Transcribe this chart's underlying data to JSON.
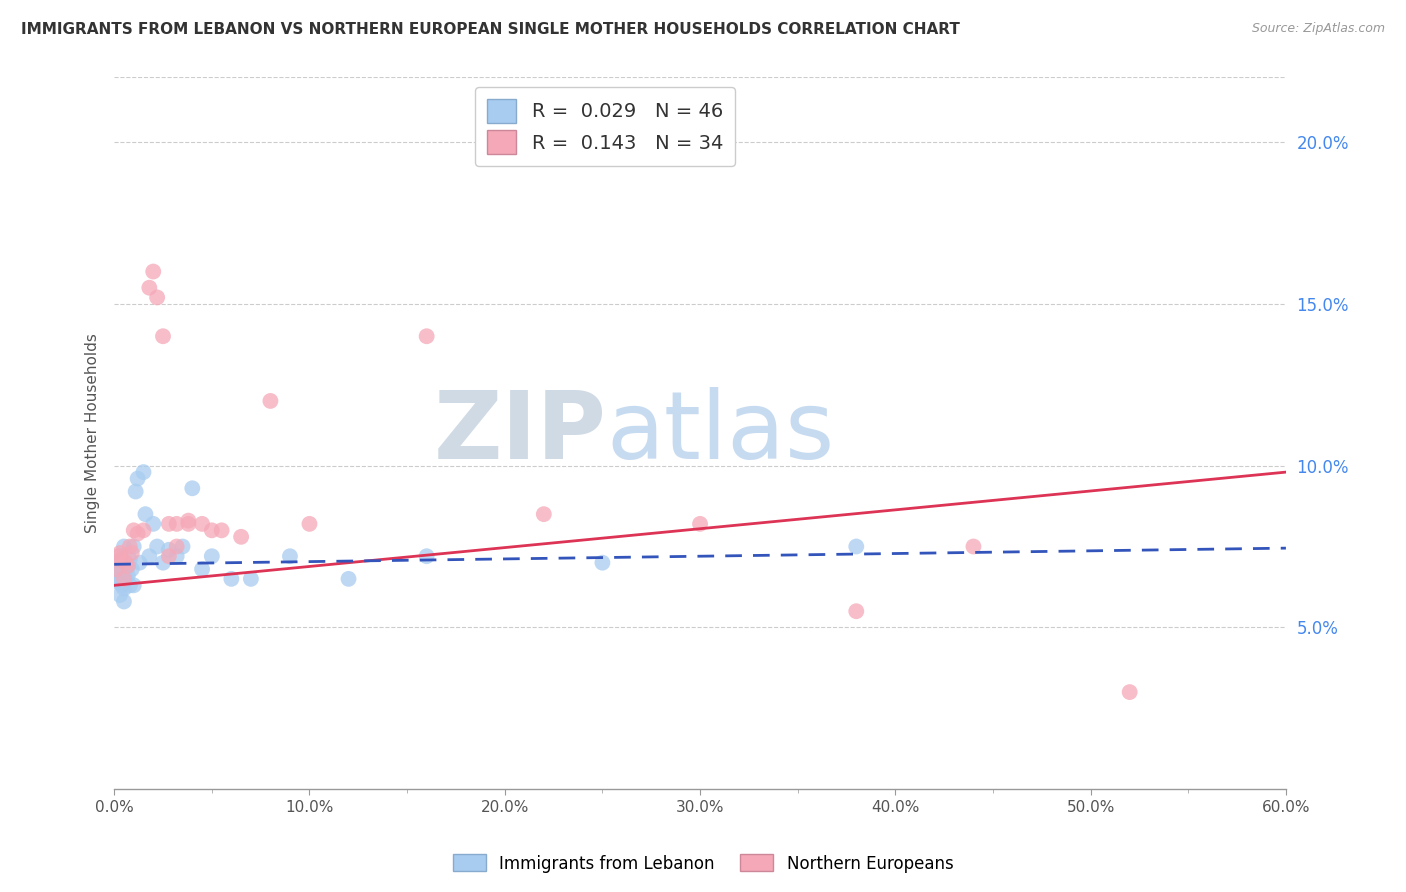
{
  "title": "IMMIGRANTS FROM LEBANON VS NORTHERN EUROPEAN SINGLE MOTHER HOUSEHOLDS CORRELATION CHART",
  "source": "Source: ZipAtlas.com",
  "ylabel": "Single Mother Households",
  "legend_label1": "Immigrants from Lebanon",
  "legend_label2": "Northern Europeans",
  "R1": 0.029,
  "N1": 46,
  "R2": 0.143,
  "N2": 34,
  "xlim": [
    0.0,
    0.6
  ],
  "ylim": [
    0.0,
    0.22
  ],
  "xticks": [
    0.0,
    0.1,
    0.2,
    0.3,
    0.4,
    0.5,
    0.6
  ],
  "yticks": [
    0.05,
    0.1,
    0.15,
    0.2
  ],
  "color_blue": "#a8ccf0",
  "color_pink": "#f5a8b8",
  "line_blue": "#3355bb",
  "line_pink": "#dd3355",
  "watermark_zip": "ZIP",
  "watermark_atlas": "atlas",
  "blue_scatter_x": [
    0.001,
    0.001,
    0.002,
    0.002,
    0.002,
    0.003,
    0.003,
    0.003,
    0.003,
    0.004,
    0.004,
    0.004,
    0.005,
    0.005,
    0.005,
    0.006,
    0.006,
    0.007,
    0.007,
    0.008,
    0.008,
    0.009,
    0.01,
    0.01,
    0.011,
    0.012,
    0.013,
    0.015,
    0.016,
    0.018,
    0.02,
    0.022,
    0.025,
    0.028,
    0.032,
    0.035,
    0.04,
    0.045,
    0.05,
    0.06,
    0.07,
    0.09,
    0.12,
    0.16,
    0.25,
    0.38
  ],
  "blue_scatter_y": [
    0.065,
    0.068,
    0.066,
    0.07,
    0.064,
    0.072,
    0.068,
    0.065,
    0.06,
    0.07,
    0.066,
    0.063,
    0.075,
    0.062,
    0.058,
    0.07,
    0.065,
    0.069,
    0.066,
    0.071,
    0.063,
    0.068,
    0.075,
    0.063,
    0.092,
    0.096,
    0.07,
    0.098,
    0.085,
    0.072,
    0.082,
    0.075,
    0.07,
    0.074,
    0.072,
    0.075,
    0.093,
    0.068,
    0.072,
    0.065,
    0.065,
    0.072,
    0.065,
    0.072,
    0.07,
    0.075
  ],
  "pink_scatter_x": [
    0.001,
    0.002,
    0.003,
    0.004,
    0.005,
    0.006,
    0.007,
    0.008,
    0.009,
    0.01,
    0.012,
    0.015,
    0.018,
    0.02,
    0.022,
    0.025,
    0.028,
    0.032,
    0.038,
    0.05,
    0.065,
    0.08,
    0.1,
    0.16,
    0.22,
    0.3,
    0.38,
    0.44,
    0.52,
    0.028,
    0.032,
    0.038,
    0.045,
    0.055
  ],
  "pink_scatter_y": [
    0.068,
    0.072,
    0.073,
    0.071,
    0.065,
    0.07,
    0.069,
    0.075,
    0.073,
    0.08,
    0.079,
    0.08,
    0.155,
    0.16,
    0.152,
    0.14,
    0.072,
    0.075,
    0.082,
    0.08,
    0.078,
    0.12,
    0.082,
    0.14,
    0.085,
    0.082,
    0.055,
    0.075,
    0.03,
    0.082,
    0.082,
    0.083,
    0.082,
    0.08
  ],
  "blue_line_x0": 0.0,
  "blue_line_x1": 0.6,
  "blue_line_y0": 0.0695,
  "blue_line_y1": 0.0745,
  "pink_line_x0": 0.0,
  "pink_line_x1": 0.6,
  "pink_line_y0": 0.063,
  "pink_line_y1": 0.098
}
